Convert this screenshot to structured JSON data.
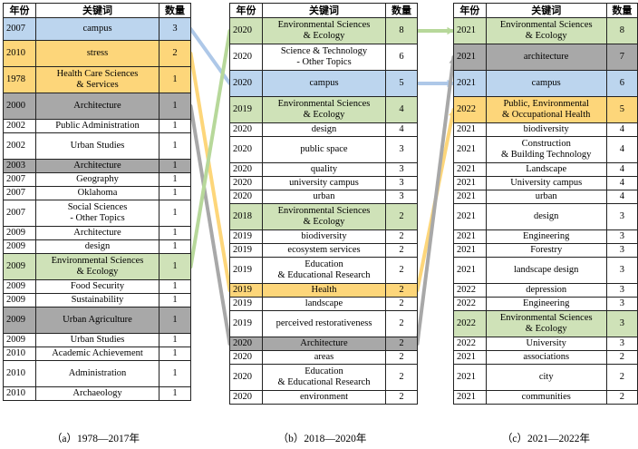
{
  "headers": {
    "year": "年份",
    "keyword": "关键词",
    "count": "数量"
  },
  "panels": [
    {
      "caption": "（a）1978—2017年",
      "rows": [
        {
          "year": "2007",
          "kw": "campus",
          "n": "3",
          "hl": "blue",
          "h": 25
        },
        {
          "year": "2010",
          "kw": "stress",
          "n": "2",
          "hl": "yellow",
          "h": 29
        },
        {
          "year": "1978",
          "kw": "Health Care Sciences\n& Services",
          "n": "1",
          "hl": "yellow",
          "h": 29
        },
        {
          "year": "2000",
          "kw": "Architecture",
          "n": "1",
          "hl": "gray",
          "h": 29
        },
        {
          "year": "2002",
          "kw": "Public Administration",
          "n": "1",
          "hl": "",
          "h": 15
        },
        {
          "year": "2002",
          "kw": "Urban Studies",
          "n": "1",
          "hl": "",
          "h": 29
        },
        {
          "year": "2003",
          "kw": "Architecture",
          "n": "1",
          "hl": "gray",
          "h": 15
        },
        {
          "year": "2007",
          "kw": "Geography",
          "n": "1",
          "hl": "",
          "h": 15
        },
        {
          "year": "2007",
          "kw": "Oklahoma",
          "n": "1",
          "hl": "",
          "h": 15
        },
        {
          "year": "2007",
          "kw": "Social Sciences\n- Other Topics",
          "n": "1",
          "hl": "",
          "h": 29
        },
        {
          "year": "2009",
          "kw": "Architecture",
          "n": "1",
          "hl": "",
          "h": 15
        },
        {
          "year": "2009",
          "kw": "design",
          "n": "1",
          "hl": "",
          "h": 15
        },
        {
          "year": "2009",
          "kw": "Environmental Sciences\n& Ecology",
          "n": "1",
          "hl": "green",
          "h": 29
        },
        {
          "year": "2009",
          "kw": "Food Security",
          "n": "1",
          "hl": "",
          "h": 15
        },
        {
          "year": "2009",
          "kw": "Sustainability",
          "n": "1",
          "hl": "",
          "h": 15
        },
        {
          "year": "2009",
          "kw": "Urban Agriculture",
          "n": "1",
          "hl": "gray",
          "h": 29
        },
        {
          "year": "2009",
          "kw": "Urban Studies",
          "n": "1",
          "hl": "",
          "h": 15
        },
        {
          "year": "2010",
          "kw": "Academic Achievement",
          "n": "1",
          "hl": "",
          "h": 15
        },
        {
          "year": "2010",
          "kw": "Administration",
          "n": "1",
          "hl": "",
          "h": 29
        },
        {
          "year": "2010",
          "kw": "Archaeology",
          "n": "1",
          "hl": "",
          "h": 15
        }
      ]
    },
    {
      "caption": "（b）2018—2020年",
      "rows": [
        {
          "year": "2020",
          "kw": "Environmental Sciences\n& Ecology",
          "n": "8",
          "hl": "green",
          "h": 29
        },
        {
          "year": "2020",
          "kw": "Science & Technology\n- Other Topics",
          "n": "6",
          "hl": "",
          "h": 29
        },
        {
          "year": "2020",
          "kw": "campus",
          "n": "5",
          "hl": "blue",
          "h": 29
        },
        {
          "year": "2019",
          "kw": "Environmental Sciences\n& Ecology",
          "n": "4",
          "hl": "green",
          "h": 29
        },
        {
          "year": "2020",
          "kw": "design",
          "n": "4",
          "hl": "",
          "h": 15
        },
        {
          "year": "2020",
          "kw": "public space",
          "n": "3",
          "hl": "",
          "h": 29
        },
        {
          "year": "2020",
          "kw": "quality",
          "n": "3",
          "hl": "",
          "h": 15
        },
        {
          "year": "2020",
          "kw": "university campus",
          "n": "3",
          "hl": "",
          "h": 15
        },
        {
          "year": "2020",
          "kw": "urban",
          "n": "3",
          "hl": "",
          "h": 15
        },
        {
          "year": "2018",
          "kw": "Environmental Sciences\n& Ecology",
          "n": "2",
          "hl": "green",
          "h": 29
        },
        {
          "year": "2019",
          "kw": "biodiversity",
          "n": "2",
          "hl": "",
          "h": 15
        },
        {
          "year": "2019",
          "kw": "ecosystem services",
          "n": "2",
          "hl": "",
          "h": 15
        },
        {
          "year": "2019",
          "kw": "Education\n& Educational Research",
          "n": "2",
          "hl": "",
          "h": 29
        },
        {
          "year": "2019",
          "kw": "Health",
          "n": "2",
          "hl": "yellow",
          "h": 15
        },
        {
          "year": "2019",
          "kw": "landscape",
          "n": "2",
          "hl": "",
          "h": 15
        },
        {
          "year": "2019",
          "kw": "perceived restorativeness",
          "n": "2",
          "hl": "",
          "h": 29
        },
        {
          "year": "2020",
          "kw": "Architecture",
          "n": "2",
          "hl": "gray",
          "h": 15
        },
        {
          "year": "2020",
          "kw": "areas",
          "n": "2",
          "hl": "",
          "h": 15
        },
        {
          "year": "2020",
          "kw": "Education\n& Educational Research",
          "n": "2",
          "hl": "",
          "h": 29
        },
        {
          "year": "2020",
          "kw": "environment",
          "n": "2",
          "hl": "",
          "h": 15
        }
      ]
    },
    {
      "caption": "（c）2021—2022年",
      "rows": [
        {
          "year": "2021",
          "kw": "Environmental Sciences\n& Ecology",
          "n": "8",
          "hl": "green",
          "h": 29
        },
        {
          "year": "2021",
          "kw": "architecture",
          "n": "7",
          "hl": "gray",
          "h": 29
        },
        {
          "year": "2021",
          "kw": "campus",
          "n": "6",
          "hl": "blue",
          "h": 29
        },
        {
          "year": "2022",
          "kw": "Public, Environmental\n& Occupational Health",
          "n": "5",
          "hl": "yellow",
          "h": 29
        },
        {
          "year": "2021",
          "kw": "biodiversity",
          "n": "4",
          "hl": "",
          "h": 15
        },
        {
          "year": "2021",
          "kw": "Construction\n& Building Technology",
          "n": "4",
          "hl": "",
          "h": 29
        },
        {
          "year": "2021",
          "kw": "Landscape",
          "n": "4",
          "hl": "",
          "h": 15
        },
        {
          "year": "2021",
          "kw": "University campus",
          "n": "4",
          "hl": "",
          "h": 15
        },
        {
          "year": "2021",
          "kw": "urban",
          "n": "4",
          "hl": "",
          "h": 15
        },
        {
          "year": "2021",
          "kw": "design",
          "n": "3",
          "hl": "",
          "h": 29
        },
        {
          "year": "2021",
          "kw": "Engineering",
          "n": "3",
          "hl": "",
          "h": 15
        },
        {
          "year": "2021",
          "kw": "Forestry",
          "n": "3",
          "hl": "",
          "h": 15
        },
        {
          "year": "2021",
          "kw": "landscape design",
          "n": "3",
          "hl": "",
          "h": 29
        },
        {
          "year": "2022",
          "kw": "depression",
          "n": "3",
          "hl": "",
          "h": 15
        },
        {
          "year": "2022",
          "kw": "Engineering",
          "n": "3",
          "hl": "",
          "h": 15
        },
        {
          "year": "2022",
          "kw": "Environmental Sciences\n& Ecology",
          "n": "3",
          "hl": "green",
          "h": 29
        },
        {
          "year": "2022",
          "kw": "University",
          "n": "3",
          "hl": "",
          "h": 15
        },
        {
          "year": "2021",
          "kw": "associations",
          "n": "2",
          "hl": "",
          "h": 15
        },
        {
          "year": "2021",
          "kw": "city",
          "n": "2",
          "hl": "",
          "h": 29
        },
        {
          "year": "2021",
          "kw": "communities",
          "n": "2",
          "hl": "",
          "h": 15
        }
      ]
    }
  ],
  "links": [
    {
      "color": "#aec8e8",
      "from": [
        0,
        0
      ],
      "to": [
        1,
        2
      ]
    },
    {
      "color": "#fdd67a",
      "from": [
        0,
        1
      ],
      "to": [
        1,
        13
      ]
    },
    {
      "color": "#a8a8a8",
      "from": [
        0,
        3
      ],
      "to": [
        1,
        16
      ]
    },
    {
      "color": "#b7d89a",
      "from": [
        0,
        12
      ],
      "to": [
        1,
        0
      ]
    },
    {
      "color": "#b7d89a",
      "from": [
        1,
        0
      ],
      "to": [
        2,
        0
      ]
    },
    {
      "color": "#aec8e8",
      "from": [
        1,
        2
      ],
      "to": [
        2,
        2
      ]
    },
    {
      "color": "#fdd67a",
      "from": [
        1,
        13
      ],
      "to": [
        2,
        3
      ]
    },
    {
      "color": "#a8a8a8",
      "from": [
        1,
        16
      ],
      "to": [
        2,
        1
      ]
    }
  ]
}
